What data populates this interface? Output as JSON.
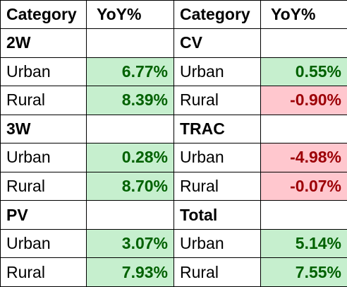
{
  "headers": [
    "Category",
    "YoY%",
    "Category",
    "YoY%"
  ],
  "left": [
    {
      "section": "2W",
      "rows": [
        {
          "label": "Urban",
          "value": "6.77%",
          "status": "pos"
        },
        {
          "label": "Rural",
          "value": "8.39%",
          "status": "pos"
        }
      ]
    },
    {
      "section": "3W",
      "rows": [
        {
          "label": "Urban",
          "value": "0.28%",
          "status": "pos"
        },
        {
          "label": "Rural",
          "value": "8.70%",
          "status": "pos"
        }
      ]
    },
    {
      "section": "PV",
      "rows": [
        {
          "label": "Urban",
          "value": "3.07%",
          "status": "pos"
        },
        {
          "label": "Rural",
          "value": "7.93%",
          "status": "pos"
        }
      ]
    }
  ],
  "right": [
    {
      "section": "CV",
      "rows": [
        {
          "label": "Urban",
          "value": "0.55%",
          "status": "pos"
        },
        {
          "label": "Rural",
          "value": "-0.90%",
          "status": "neg"
        }
      ]
    },
    {
      "section": "TRAC",
      "rows": [
        {
          "label": "Urban",
          "value": "-4.98%",
          "status": "neg"
        },
        {
          "label": "Rural",
          "value": "-0.07%",
          "status": "neg"
        }
      ]
    },
    {
      "section": "Total",
      "rows": [
        {
          "label": "Urban",
          "value": "5.14%",
          "status": "pos"
        },
        {
          "label": "Rural",
          "value": "7.55%",
          "status": "pos"
        }
      ]
    }
  ],
  "colors": {
    "positive_fill": "#c6efce",
    "positive_text": "#006100",
    "negative_fill": "#ffc7ce",
    "negative_text": "#9c0006"
  }
}
